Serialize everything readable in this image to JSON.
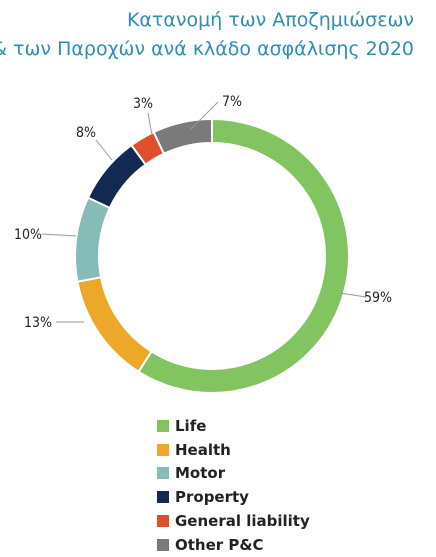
{
  "title": {
    "line1": "Κατανομή των Αποζημιώσεων",
    "line2": "& των Παροχών ανά κλάδο ασφάλισης 2020"
  },
  "chart_data": {
    "type": "pie",
    "donut": true,
    "unit": "%",
    "slices": [
      {
        "name": "Life",
        "value": 59,
        "label": "59%",
        "color": "#82c460"
      },
      {
        "name": "Health",
        "value": 13,
        "label": "13%",
        "color": "#eea829"
      },
      {
        "name": "Motor",
        "value": 10,
        "label": "10%",
        "color": "#85bcb8"
      },
      {
        "name": "Property",
        "value": 8,
        "label": "8%",
        "color": "#122a52"
      },
      {
        "name": "General liability",
        "value": 3,
        "label": "3%",
        "color": "#e04e2b"
      },
      {
        "name": "Other P&C",
        "value": 7,
        "label": "7%",
        "color": "#7a7a7a"
      }
    ],
    "legend_position": "bottom"
  }
}
